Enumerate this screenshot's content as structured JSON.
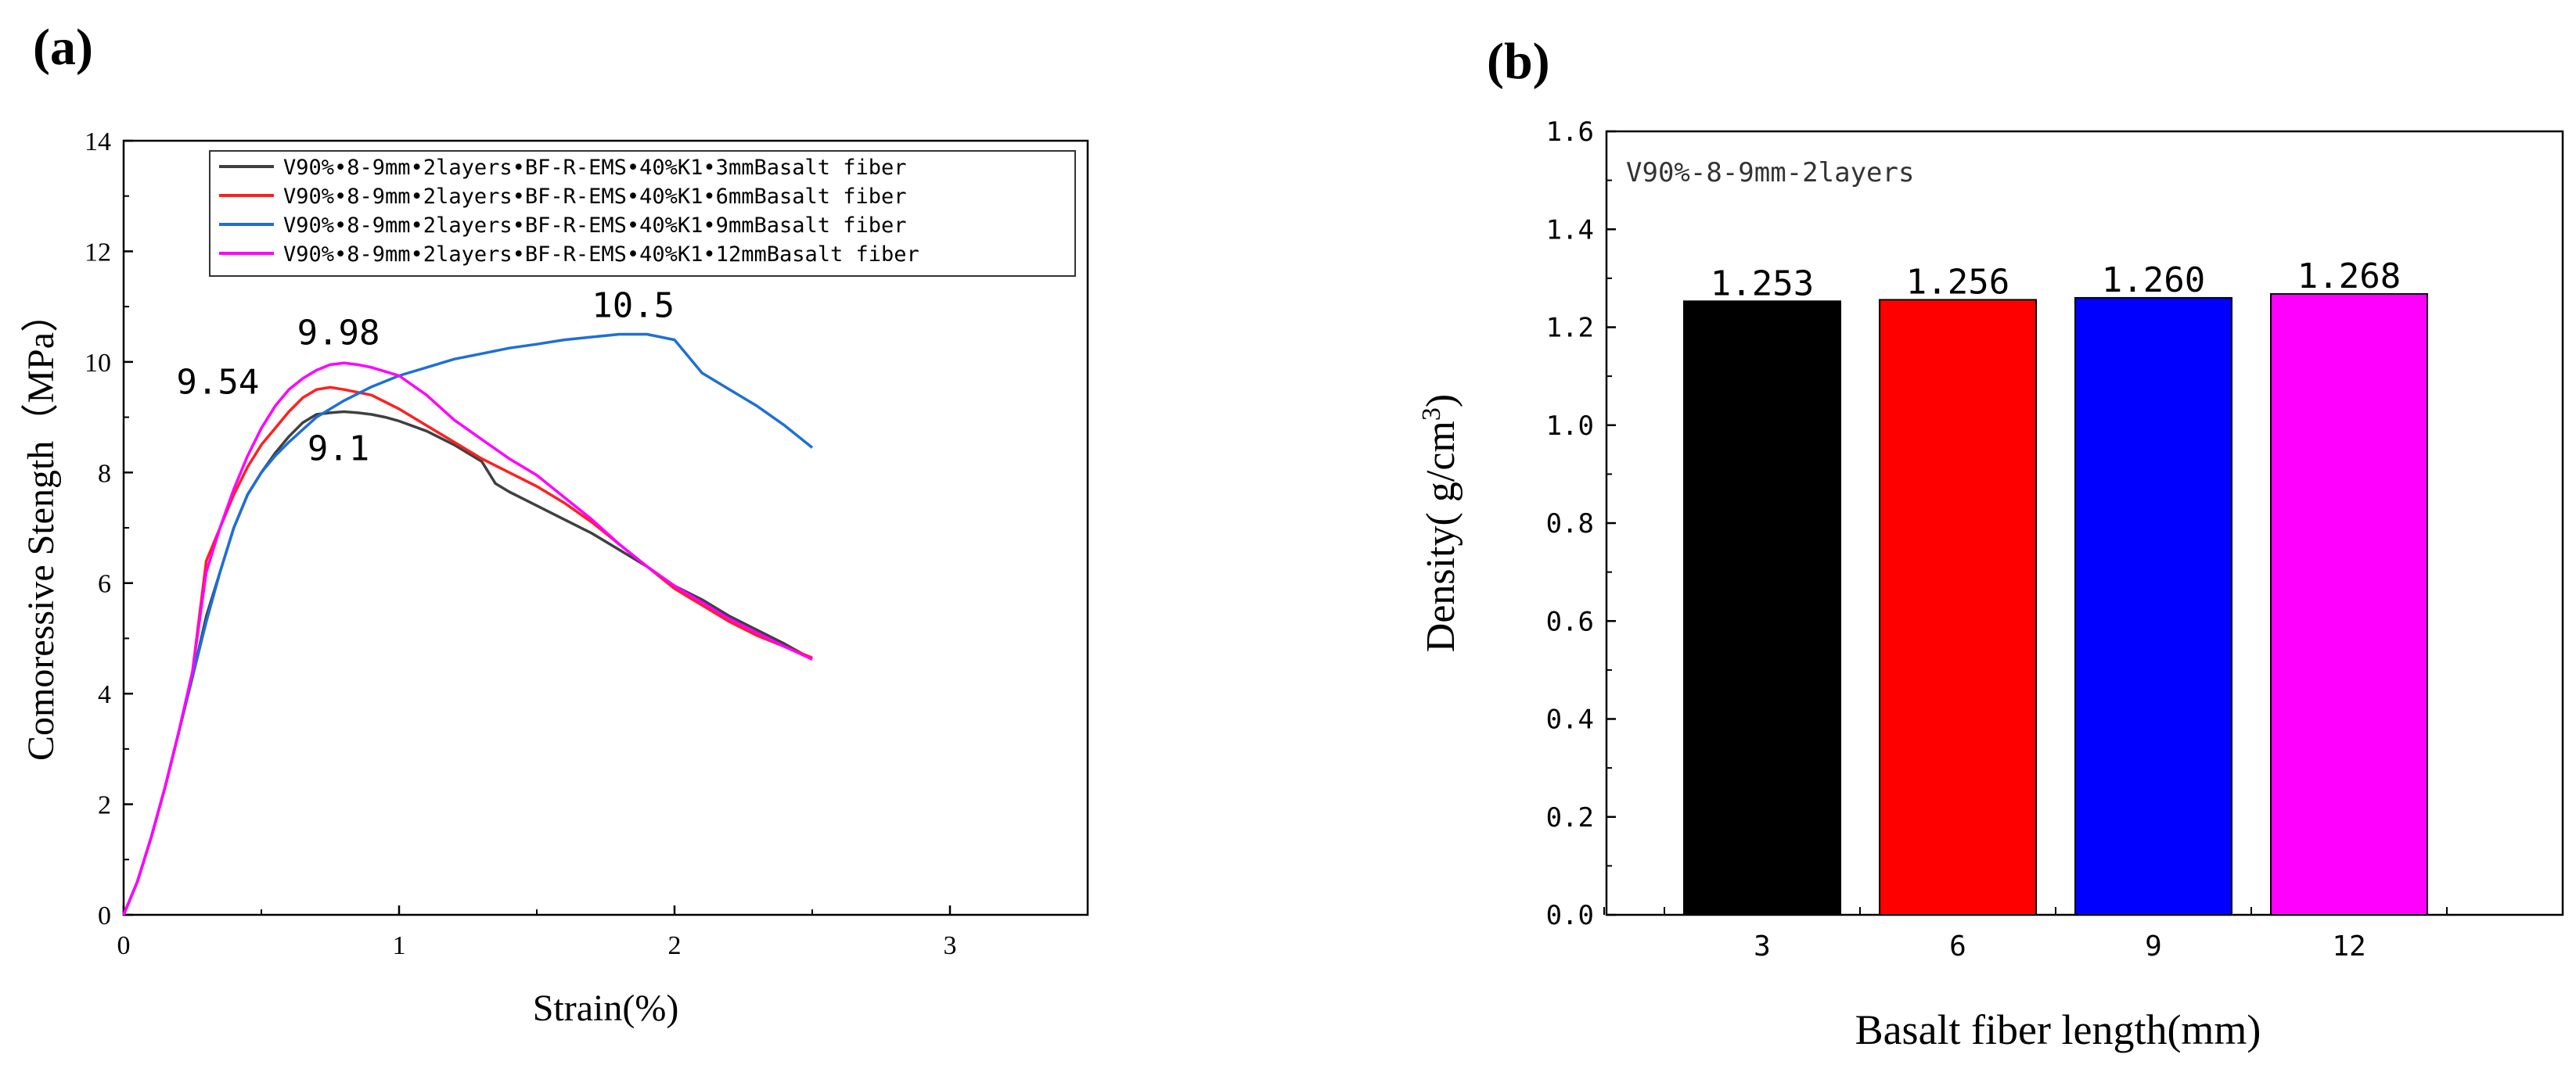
{
  "charts": [
    {
      "panel_label": "(a)",
      "chart_data": {
        "type": "line",
        "title": "",
        "xlabel": "Strain(%)",
        "ylabel": "Comoressive Stength（MPa）",
        "xlim": [
          0,
          3.5
        ],
        "ylim": [
          0,
          14
        ],
        "xticks": [
          0,
          1,
          2,
          3
        ],
        "yticks": [
          0,
          2,
          4,
          6,
          8,
          10,
          12,
          14
        ],
        "legend_position": "top-right",
        "series": [
          {
            "name": "V90%•8-9mm•2layers•BF-R-EMS•40%K1•3mmBasalt fiber",
            "color": "#404040",
            "points": [
              [
                0,
                0
              ],
              [
                0.05,
                0.6
              ],
              [
                0.1,
                1.4
              ],
              [
                0.15,
                2.3
              ],
              [
                0.2,
                3.3
              ],
              [
                0.25,
                4.3
              ],
              [
                0.3,
                5.4
              ],
              [
                0.35,
                6.2
              ],
              [
                0.4,
                7.0
              ],
              [
                0.45,
                7.6
              ],
              [
                0.5,
                8.0
              ],
              [
                0.55,
                8.35
              ],
              [
                0.6,
                8.65
              ],
              [
                0.65,
                8.9
              ],
              [
                0.7,
                9.05
              ],
              [
                0.75,
                9.08
              ],
              [
                0.8,
                9.1
              ],
              [
                0.85,
                9.08
              ],
              [
                0.9,
                9.05
              ],
              [
                0.95,
                9.0
              ],
              [
                1.0,
                8.93
              ],
              [
                1.1,
                8.75
              ],
              [
                1.2,
                8.5
              ],
              [
                1.3,
                8.2
              ],
              [
                1.35,
                7.8
              ],
              [
                1.4,
                7.65
              ],
              [
                1.5,
                7.4
              ],
              [
                1.6,
                7.15
              ],
              [
                1.7,
                6.9
              ],
              [
                1.8,
                6.6
              ],
              [
                1.9,
                6.3
              ],
              [
                2.0,
                5.95
              ],
              [
                2.1,
                5.7
              ],
              [
                2.2,
                5.4
              ],
              [
                2.3,
                5.15
              ],
              [
                2.4,
                4.9
              ],
              [
                2.5,
                4.62
              ]
            ]
          },
          {
            "name": "V90%•8-9mm•2layers•BF-R-EMS•40%K1•6mmBasalt fiber",
            "color": "#ff2020",
            "points": [
              [
                0,
                0
              ],
              [
                0.05,
                0.6
              ],
              [
                0.1,
                1.4
              ],
              [
                0.15,
                2.3
              ],
              [
                0.2,
                3.3
              ],
              [
                0.25,
                4.4
              ],
              [
                0.3,
                6.4
              ],
              [
                0.35,
                7.0
              ],
              [
                0.4,
                7.6
              ],
              [
                0.45,
                8.1
              ],
              [
                0.5,
                8.5
              ],
              [
                0.55,
                8.8
              ],
              [
                0.6,
                9.1
              ],
              [
                0.65,
                9.35
              ],
              [
                0.7,
                9.5
              ],
              [
                0.75,
                9.54
              ],
              [
                0.8,
                9.5
              ],
              [
                0.9,
                9.4
              ],
              [
                1.0,
                9.15
              ],
              [
                1.1,
                8.85
              ],
              [
                1.2,
                8.55
              ],
              [
                1.3,
                8.25
              ],
              [
                1.4,
                8.0
              ],
              [
                1.5,
                7.75
              ],
              [
                1.6,
                7.45
              ],
              [
                1.7,
                7.1
              ],
              [
                1.8,
                6.7
              ],
              [
                1.9,
                6.3
              ],
              [
                2.0,
                5.9
              ],
              [
                2.1,
                5.6
              ],
              [
                2.2,
                5.3
              ],
              [
                2.3,
                5.05
              ],
              [
                2.4,
                4.85
              ],
              [
                2.5,
                4.65
              ]
            ]
          },
          {
            "name": "V90%•8-9mm•2layers•BF-R-EMS•40%K1•9mmBasalt fiber",
            "color": "#1f6fd6",
            "points": [
              [
                0,
                0
              ],
              [
                0.05,
                0.6
              ],
              [
                0.1,
                1.4
              ],
              [
                0.15,
                2.3
              ],
              [
                0.2,
                3.3
              ],
              [
                0.25,
                4.3
              ],
              [
                0.3,
                5.3
              ],
              [
                0.35,
                6.2
              ],
              [
                0.4,
                7.0
              ],
              [
                0.45,
                7.6
              ],
              [
                0.5,
                8.0
              ],
              [
                0.55,
                8.3
              ],
              [
                0.6,
                8.55
              ],
              [
                0.7,
                9.0
              ],
              [
                0.8,
                9.3
              ],
              [
                0.9,
                9.55
              ],
              [
                1.0,
                9.75
              ],
              [
                1.1,
                9.9
              ],
              [
                1.2,
                10.05
              ],
              [
                1.3,
                10.15
              ],
              [
                1.4,
                10.25
              ],
              [
                1.5,
                10.32
              ],
              [
                1.6,
                10.4
              ],
              [
                1.7,
                10.45
              ],
              [
                1.8,
                10.5
              ],
              [
                1.9,
                10.5
              ],
              [
                2.0,
                10.4
              ],
              [
                2.05,
                10.1
              ],
              [
                2.1,
                9.8
              ],
              [
                2.2,
                9.5
              ],
              [
                2.3,
                9.2
              ],
              [
                2.4,
                8.85
              ],
              [
                2.5,
                8.45
              ]
            ]
          },
          {
            "name": "V90%•8-9mm•2layers•BF-R-EMS•40%K1•12mmBasalt fiber",
            "color": "#ff00ff",
            "points": [
              [
                0,
                0
              ],
              [
                0.05,
                0.6
              ],
              [
                0.1,
                1.4
              ],
              [
                0.15,
                2.3
              ],
              [
                0.2,
                3.3
              ],
              [
                0.25,
                4.4
              ],
              [
                0.3,
                6.2
              ],
              [
                0.35,
                7.0
              ],
              [
                0.4,
                7.7
              ],
              [
                0.45,
                8.3
              ],
              [
                0.5,
                8.8
              ],
              [
                0.55,
                9.2
              ],
              [
                0.6,
                9.5
              ],
              [
                0.65,
                9.7
              ],
              [
                0.7,
                9.85
              ],
              [
                0.75,
                9.95
              ],
              [
                0.8,
                9.98
              ],
              [
                0.85,
                9.95
              ],
              [
                0.9,
                9.9
              ],
              [
                1.0,
                9.75
              ],
              [
                1.1,
                9.4
              ],
              [
                1.2,
                8.95
              ],
              [
                1.3,
                8.6
              ],
              [
                1.4,
                8.25
              ],
              [
                1.5,
                7.95
              ],
              [
                1.6,
                7.55
              ],
              [
                1.7,
                7.15
              ],
              [
                1.8,
                6.7
              ],
              [
                1.9,
                6.3
              ],
              [
                2.0,
                5.95
              ],
              [
                2.1,
                5.65
              ],
              [
                2.2,
                5.35
              ],
              [
                2.3,
                5.1
              ],
              [
                2.4,
                4.85
              ],
              [
                2.5,
                4.62
              ]
            ]
          }
        ],
        "annotations": [
          {
            "text": "10.5",
            "x": 1.85,
            "y": 10.5
          },
          {
            "text": "9.98",
            "x": 0.78,
            "y": 9.98
          },
          {
            "text": "9.54",
            "x": 0.45,
            "y": 9.54
          },
          {
            "text": "9.1",
            "x": 0.78,
            "y": 9.1
          }
        ]
      }
    },
    {
      "panel_label": "(b)",
      "chart_data": {
        "type": "bar",
        "title": "",
        "inner_label": "V90%-8-9mm-2layers",
        "xlabel": "Basalt fiber length(mm)",
        "ylabel": "Density( g/cm",
        "ylabel_sup": "3",
        "ylabel_close": ")",
        "categories": [
          "3",
          "6",
          "9",
          "12"
        ],
        "values": [
          1.253,
          1.256,
          1.26,
          1.268
        ],
        "value_labels": [
          "1.253",
          "1.256",
          "1.260",
          "1.268"
        ],
        "colors": [
          "#000000",
          "#ff0000",
          "#0000ff",
          "#ff00ff"
        ],
        "ylim": [
          0,
          1.6
        ],
        "yticks": [
          "0.0",
          "0.2",
          "0.4",
          "0.6",
          "0.8",
          "1.0",
          "1.2",
          "1.4",
          "1.6"
        ]
      }
    }
  ]
}
